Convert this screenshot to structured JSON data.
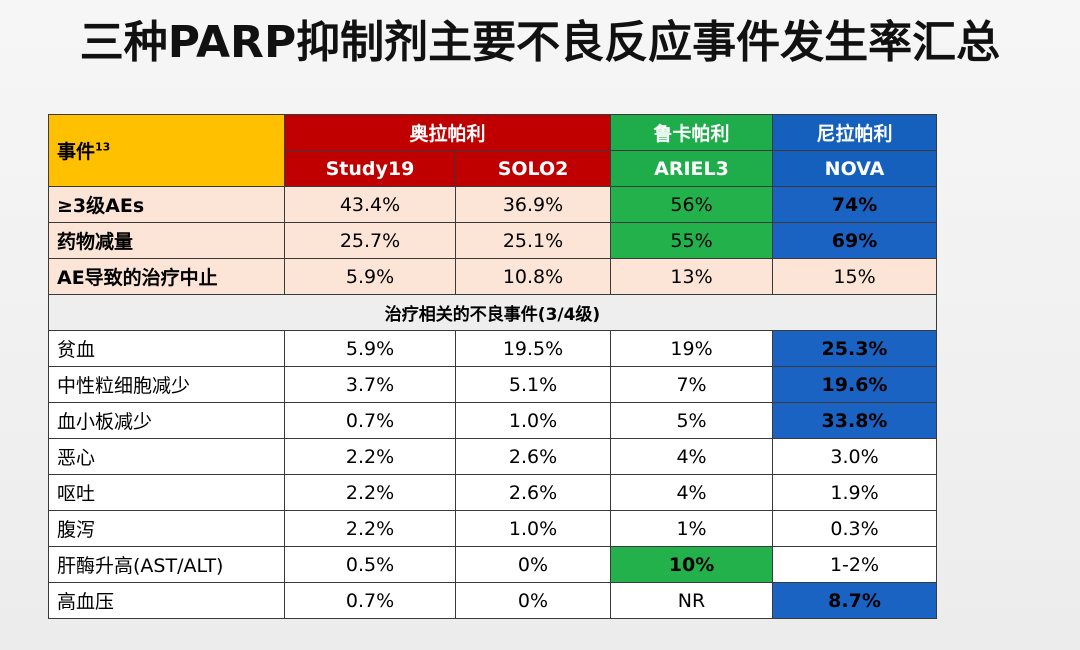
{
  "title": "三种PARP抑制剂主要不良反应事件发生率汇总",
  "table": {
    "event_header": "事件",
    "event_header_sup": "13",
    "drugs": [
      {
        "name": "奥拉帕利",
        "color": "#c00000",
        "studies": [
          "Study19",
          "SOLO2"
        ]
      },
      {
        "name": "鲁卡帕利",
        "color": "#1ead4a",
        "studies": [
          "ARIEL3"
        ]
      },
      {
        "name": "尼拉帕利",
        "color": "#1560bd",
        "studies": [
          "NOVA"
        ]
      }
    ],
    "summary_rows": [
      {
        "event": "≥3级AEs",
        "values": [
          "43.4%",
          "36.9%",
          "56%",
          "74%"
        ]
      },
      {
        "event": "药物减量",
        "values": [
          "25.7%",
          "25.1%",
          "55%",
          "69%"
        ]
      },
      {
        "event": "AE导致的治疗中止",
        "values": [
          "5.9%",
          "10.8%",
          "13%",
          "15%"
        ]
      }
    ],
    "section_label": "治疗相关的不良事件(3/4级)",
    "detail_rows": [
      {
        "event": "贫血",
        "values": [
          "5.9%",
          "19.5%",
          "19%",
          "25.3%"
        ]
      },
      {
        "event": "中性粒细胞减少",
        "values": [
          "3.7%",
          "5.1%",
          "7%",
          "19.6%"
        ]
      },
      {
        "event": "血小板减少",
        "values": [
          "0.7%",
          "1.0%",
          "5%",
          "33.8%"
        ]
      },
      {
        "event": "恶心",
        "values": [
          "2.2%",
          "2.6%",
          "4%",
          "3.0%"
        ]
      },
      {
        "event": "呕吐",
        "values": [
          "2.2%",
          "2.6%",
          "4%",
          "1.9%"
        ]
      },
      {
        "event": "腹泻",
        "values": [
          "2.2%",
          "1.0%",
          "1%",
          "0.3%"
        ]
      },
      {
        "event": "肝酶升高(AST/ALT)",
        "values": [
          "0.5%",
          "0%",
          "10%",
          "1-2%"
        ]
      },
      {
        "event": "高血压",
        "values": [
          "0.7%",
          "0%",
          "NR",
          "8.7%"
        ]
      }
    ]
  }
}
